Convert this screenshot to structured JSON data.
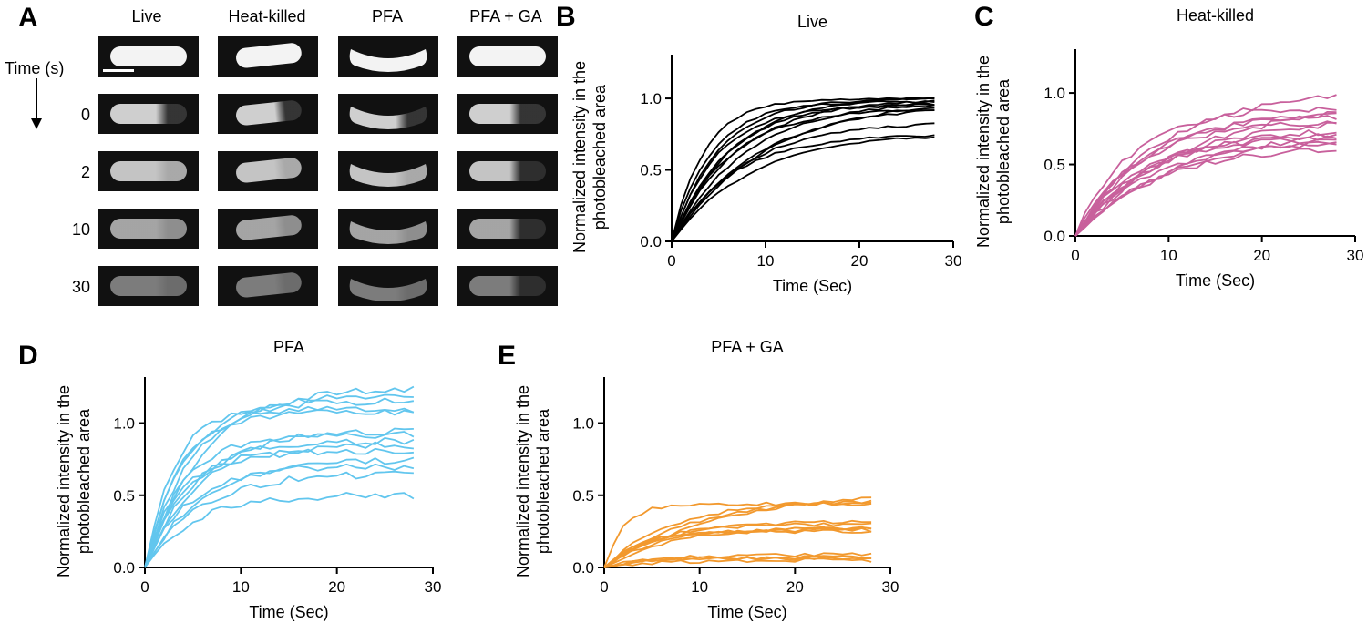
{
  "panel_a": {
    "letter": "A",
    "columns": [
      "Live",
      "Heat-killed",
      "PFA",
      "PFA + GA"
    ],
    "time_label": "Time (s)",
    "rows": [
      "",
      "0",
      "2",
      "10",
      "30"
    ],
    "has_scale_bar": true
  },
  "colors": {
    "live": "#000000",
    "heat_killed": "#c8609c",
    "pfa": "#62c6ee",
    "pfa_ga": "#f2992e"
  },
  "chart_data": [
    {
      "type": "line",
      "letter": "B",
      "title": "Live",
      "xlabel": "Time (Sec)",
      "ylabel": "Normalized intensity in the photobleached area",
      "xlim": [
        0,
        30
      ],
      "ylim": [
        0,
        1.3
      ],
      "xticks": [
        "0",
        "10",
        "20",
        "30"
      ],
      "yticks": [
        "0.0",
        "0.5",
        "1.0"
      ],
      "color": "#000000",
      "jitter": 0.008,
      "series": [
        {
          "plateau": 1.0,
          "tau": 3.5
        },
        {
          "plateau": 0.98,
          "tau": 4.2
        },
        {
          "plateau": 1.0,
          "tau": 5.0
        },
        {
          "plateau": 0.97,
          "tau": 5.8
        },
        {
          "plateau": 1.02,
          "tau": 6.5
        },
        {
          "plateau": 0.95,
          "tau": 4.8
        },
        {
          "plateau": 0.93,
          "tau": 6.0
        },
        {
          "plateau": 1.0,
          "tau": 7.0
        },
        {
          "plateau": 0.99,
          "tau": 8.0
        },
        {
          "plateau": 0.96,
          "tau": 9.0
        },
        {
          "plateau": 0.84,
          "tau": 7.5
        },
        {
          "plateau": 0.76,
          "tau": 8.5
        },
        {
          "plateau": 0.75,
          "tau": 6.5
        },
        {
          "plateau": 1.0,
          "tau": 10.0
        }
      ]
    },
    {
      "type": "line",
      "letter": "C",
      "title": "Heat-killed",
      "xlabel": "Time (Sec)",
      "ylabel": "Normalized intensity in the photobleached area",
      "xlim": [
        0,
        30
      ],
      "ylim": [
        0,
        1.3
      ],
      "xticks": [
        "0",
        "10",
        "20",
        "30"
      ],
      "yticks": [
        "0.0",
        "0.5",
        "1.0"
      ],
      "color": "#c8609c",
      "jitter": 0.02,
      "series": [
        {
          "plateau": 1.02,
          "tau": 9.0
        },
        {
          "plateau": 0.9,
          "tau": 6.0
        },
        {
          "plateau": 0.88,
          "tau": 8.0
        },
        {
          "plateau": 0.85,
          "tau": 7.0
        },
        {
          "plateau": 0.8,
          "tau": 6.5
        },
        {
          "plateau": 0.82,
          "tau": 9.5
        },
        {
          "plateau": 0.76,
          "tau": 8.5
        },
        {
          "plateau": 0.72,
          "tau": 7.5
        },
        {
          "plateau": 0.7,
          "tau": 10.0
        },
        {
          "plateau": 0.68,
          "tau": 6.0
        },
        {
          "plateau": 0.66,
          "tau": 8.0
        },
        {
          "plateau": 0.75,
          "tau": 11.0
        },
        {
          "plateau": 0.95,
          "tau": 12.0
        },
        {
          "plateau": 0.64,
          "tau": 9.0
        }
      ]
    },
    {
      "type": "line",
      "letter": "D",
      "title": "PFA",
      "xlabel": "Time (Sec)",
      "ylabel": "Normalized intensity in the photobleached area",
      "xlim": [
        0,
        30
      ],
      "ylim": [
        0,
        1.3
      ],
      "xticks": [
        "0",
        "10",
        "20",
        "30"
      ],
      "yticks": [
        "0.0",
        "0.5",
        "1.0"
      ],
      "color": "#62c6ee",
      "jitter": 0.025,
      "series": [
        {
          "plateau": 1.25,
          "tau": 6.0
        },
        {
          "plateau": 1.2,
          "tau": 5.0
        },
        {
          "plateau": 1.15,
          "tau": 4.0
        },
        {
          "plateau": 1.1,
          "tau": 3.0
        },
        {
          "plateau": 1.08,
          "tau": 3.5
        },
        {
          "plateau": 0.95,
          "tau": 5.5
        },
        {
          "plateau": 0.92,
          "tau": 4.0
        },
        {
          "plateau": 0.88,
          "tau": 4.5
        },
        {
          "plateau": 0.85,
          "tau": 5.0
        },
        {
          "plateau": 0.8,
          "tau": 3.5
        },
        {
          "plateau": 0.75,
          "tau": 6.0
        },
        {
          "plateau": 0.7,
          "tau": 4.5
        },
        {
          "plateau": 0.65,
          "tau": 5.5
        },
        {
          "plateau": 0.5,
          "tau": 5.0
        }
      ]
    },
    {
      "type": "line",
      "letter": "E",
      "title": "PFA + GA",
      "xlabel": "Time (Sec)",
      "ylabel": "Normalized intensity in the photobleached area",
      "xlim": [
        0,
        30
      ],
      "ylim": [
        0,
        1.3
      ],
      "xticks": [
        "0",
        "10",
        "20",
        "30"
      ],
      "yticks": [
        "0.0",
        "0.5",
        "1.0"
      ],
      "color": "#f2992e",
      "jitter": 0.012,
      "series": [
        {
          "plateau": 0.53,
          "tau": 12.0
        },
        {
          "plateau": 0.48,
          "tau": 9.0
        },
        {
          "plateau": 0.44,
          "tau": 2.0
        },
        {
          "plateau": 0.46,
          "tau": 7.0
        },
        {
          "plateau": 0.32,
          "tau": 6.0
        },
        {
          "plateau": 0.3,
          "tau": 5.0
        },
        {
          "plateau": 0.28,
          "tau": 7.0
        },
        {
          "plateau": 0.27,
          "tau": 5.5
        },
        {
          "plateau": 0.26,
          "tau": 4.0
        },
        {
          "plateau": 0.25,
          "tau": 3.5
        },
        {
          "plateau": 0.09,
          "tau": 6.0
        },
        {
          "plateau": 0.07,
          "tau": 4.0
        },
        {
          "plateau": 0.06,
          "tau": 3.0
        },
        {
          "plateau": 0.05,
          "tau": 5.0
        }
      ]
    }
  ]
}
